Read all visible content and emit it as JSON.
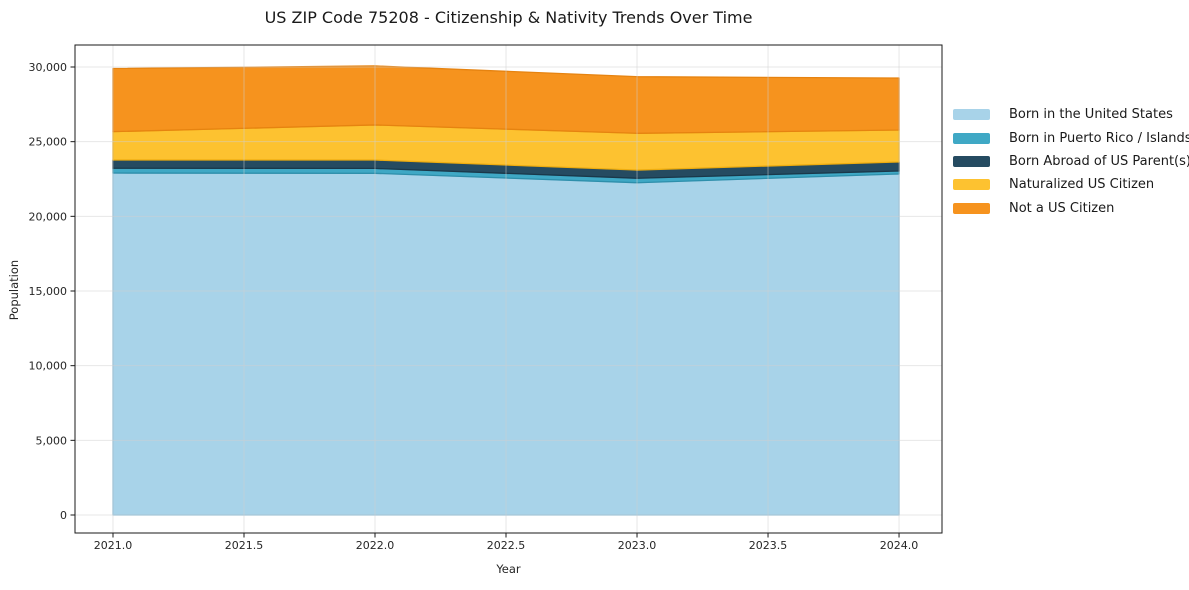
{
  "chart_data": {
    "type": "area",
    "stacked": true,
    "title": "US ZIP Code 75208 - Citizenship & Nativity Trends Over Time",
    "xlabel": "Year",
    "ylabel": "Population",
    "x": [
      2021,
      2022,
      2023,
      2024
    ],
    "series": [
      {
        "name": "Born in the United States",
        "color": "#a8d3e9",
        "edge": "#8bc0dd",
        "values": [
          22900,
          22880,
          22250,
          22840
        ]
      },
      {
        "name": "Born in Puerto Rico / Islands",
        "color": "#3fa8c5",
        "edge": "#2e8fab",
        "values": [
          320,
          330,
          300,
          200
        ]
      },
      {
        "name": "Born Abroad of US Parent(s)",
        "color": "#254b61",
        "edge": "#1a384a",
        "values": [
          550,
          560,
          550,
          600
        ]
      },
      {
        "name": "Naturalized US Citizen",
        "color": "#fdc230",
        "edge": "#efad0f",
        "values": [
          1900,
          2350,
          2460,
          2140
        ]
      },
      {
        "name": "Not a US Citizen",
        "color": "#f6931e",
        "edge": "#e68310",
        "values": [
          4230,
          3950,
          3790,
          3480
        ]
      }
    ],
    "xticks": {
      "values": [
        2021.0,
        2021.5,
        2022.0,
        2022.5,
        2023.0,
        2023.5,
        2024.0
      ],
      "labels": [
        "2021.0",
        "2021.5",
        "2022.0",
        "2022.5",
        "2023.0",
        "2023.5",
        "2024.0"
      ]
    },
    "yticks": {
      "values": [
        0,
        5000,
        10000,
        15000,
        20000,
        25000,
        30000
      ],
      "labels": [
        "0",
        "5,000",
        "10,000",
        "15,000",
        "20,000",
        "25,000",
        "30,000"
      ]
    },
    "xlim": [
      2020.855,
      2024.164
    ],
    "ylim": [
      -1205,
      31473
    ],
    "grid": true,
    "legend_position": "right"
  }
}
